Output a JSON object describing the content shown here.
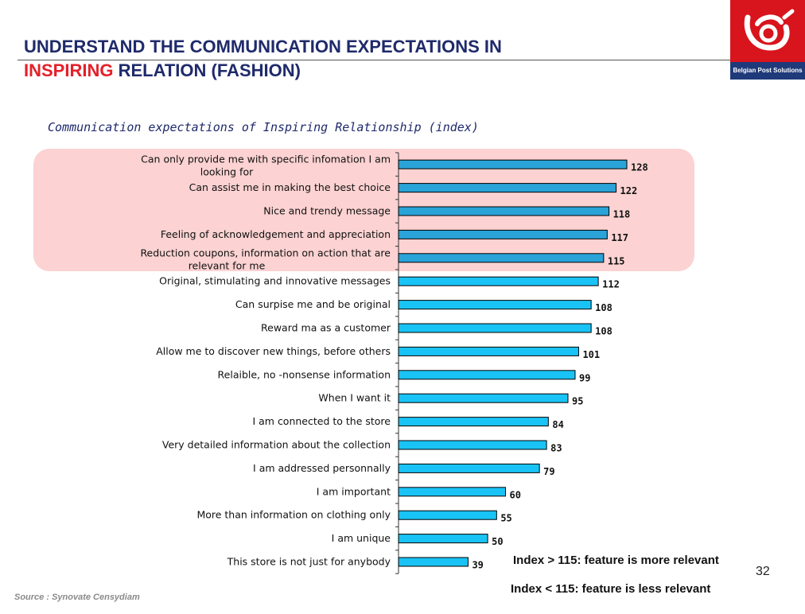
{
  "header": {
    "title_line1": "UNDERSTAND THE COMMUNICATION EXPECTATIONS IN",
    "title_line2_highlight": "INSPIRING",
    "title_line2_rest": " RELATION (FASHION)",
    "logo_text": "Belgian Post Solutions"
  },
  "chart_data": {
    "type": "bar",
    "orientation": "horizontal",
    "title": "Communication expectations of Inspiring Relationship (index)",
    "categories": [
      "Can only provide me with specific infomation I am looking for",
      "Can assist me in making the best choice",
      "Nice and trendy message",
      "Feeling of acknowledgement and appreciation",
      "Reduction coupons, information on action that are relevant for me",
      "Original, stimulating and innovative messages",
      "Can surpise me and be original",
      "Reward ma as a customer",
      "Allow me to discover new things, before others",
      "Relaible, no -nonsense information",
      "When I want it",
      "I am connected to the store",
      "Very detailed information about the collection",
      "I am addressed personnally",
      "I am important",
      "More than information on clothing only",
      "I am unique",
      "This store is not just for anybody"
    ],
    "values": [
      128,
      122,
      118,
      117,
      115,
      112,
      108,
      108,
      101,
      99,
      95,
      84,
      83,
      79,
      60,
      55,
      50,
      39
    ],
    "xlim": [
      0,
      130
    ],
    "grid": false,
    "highlight_threshold": 115,
    "bar_color": "#19c3f5",
    "bar_color_highlight": "#2aa3d8",
    "highlight_color": "#fcd2d2"
  },
  "notes": {
    "more_relevant": "Index > 115: feature is more relevant",
    "less_relevant": "Index < 115: feature is less relevant"
  },
  "footer": {
    "page_number": "32",
    "source": "Source : Synovate Censydiam"
  }
}
